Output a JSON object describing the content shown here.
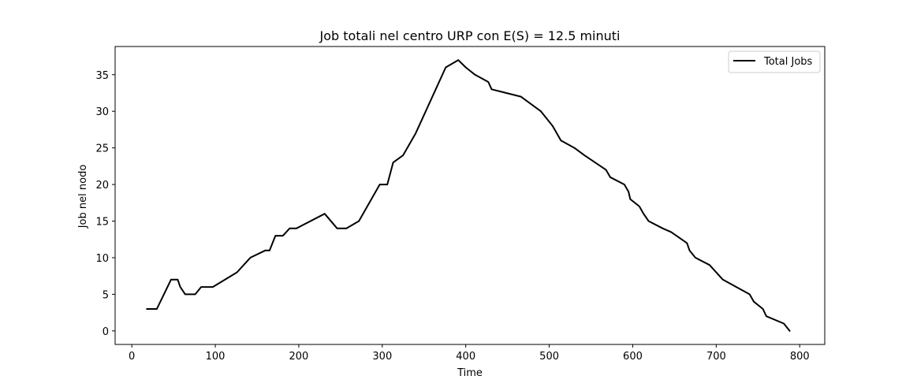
{
  "chart_data": {
    "type": "line",
    "title": "Job totali nel centro URP con E(S) = 12.5 minuti",
    "xlabel": "Time",
    "ylabel": "Job nel nodo",
    "xlim": [
      -20,
      830
    ],
    "ylim": [
      -1.85,
      38.85
    ],
    "xticks": [
      0,
      100,
      200,
      300,
      400,
      500,
      600,
      700,
      800
    ],
    "xtick_labels": [
      "0",
      "100",
      "200",
      "300",
      "400",
      "500",
      "600",
      "700",
      "800"
    ],
    "yticks": [
      0,
      5,
      10,
      15,
      20,
      25,
      30,
      35
    ],
    "ytick_labels": [
      "0",
      "5",
      "10",
      "15",
      "20",
      "25",
      "30",
      "35"
    ],
    "grid": false,
    "legend_position": "top-right",
    "series": [
      {
        "name": "Total Jobs",
        "color": "#000000",
        "x": [
          18,
          30,
          47,
          55,
          58,
          64,
          76,
          83,
          97,
          126,
          142,
          160,
          165,
          172,
          181,
          189,
          197,
          231,
          246,
          257,
          272,
          297,
          306,
          313,
          325,
          340,
          376,
          391,
          400,
          411,
          427,
          431,
          466,
          490,
          504,
          514,
          530,
          542,
          555,
          568,
          573,
          590,
          595,
          597,
          608,
          613,
          619,
          636,
          646,
          665,
          668,
          675,
          692,
          708,
          740,
          745,
          756,
          760,
          781,
          788
        ],
        "y": [
          3,
          3,
          7,
          7,
          6,
          5,
          5,
          6,
          6,
          8,
          10,
          11,
          11,
          13,
          13,
          14,
          14,
          16,
          14,
          14,
          15,
          20,
          20,
          23,
          24,
          27,
          36,
          37,
          36,
          35,
          34,
          33,
          32,
          30,
          28,
          26,
          25,
          24,
          23,
          22,
          21,
          20,
          19,
          18,
          17,
          16,
          15,
          14,
          13.5,
          12,
          11,
          10,
          9,
          7,
          5,
          4,
          3,
          2,
          1,
          0
        ]
      }
    ]
  }
}
